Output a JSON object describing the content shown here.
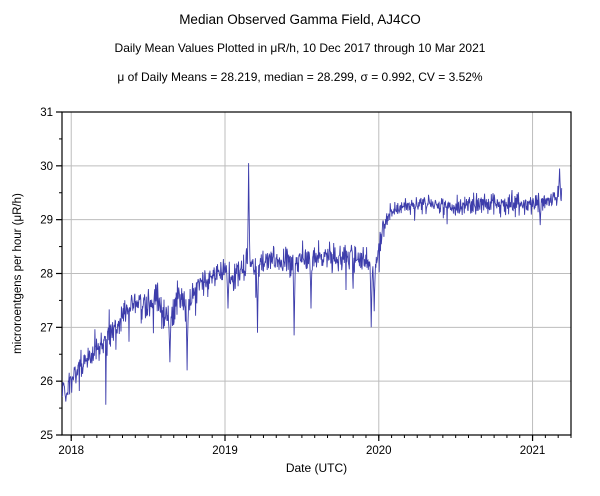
{
  "chart_data": {
    "type": "line",
    "title": "Median Observed Gamma Field, AJ4CO",
    "subtitle": "Daily Mean Values Plotted in μR/h, 10 Dec 2017 through 10 Mar 2021",
    "stats_line": "μ of Daily Means = 28.219,   median = 28.299,   σ = 0.992,   CV = 3.52%",
    "xlabel": "Date (UTC)",
    "ylabel": "microroentgens per hour (μR/h)",
    "summary": {
      "mean_of_daily_means": 28.219,
      "median": 28.299,
      "sigma": 0.992,
      "cv_percent": 3.52
    },
    "x_range": [
      2017.94,
      2021.25
    ],
    "x_data_start": 2017.94,
    "x_data_end": 2021.19,
    "ylim": [
      25,
      31
    ],
    "x_ticks": [
      2018,
      2019,
      2020,
      2021
    ],
    "y_ticks": [
      25,
      26,
      27,
      28,
      29,
      30,
      31
    ],
    "grid": true,
    "grid_color": "#bdbdbd",
    "series_color": "#3d3dab",
    "axis_color": "#000000",
    "points_per_year": 365,
    "noise_periods": [
      {
        "until": 2019.0,
        "sd": 0.14,
        "dip_prob": 0.035,
        "dip_max": 0.8
      },
      {
        "until": 2020.0,
        "sd": 0.12,
        "dip_prob": 0.03,
        "dip_max": 0.7
      },
      {
        "until": 2022.0,
        "sd": 0.09,
        "dip_prob": 0.012,
        "dip_max": 0.4
      }
    ],
    "trend_anchors": [
      [
        2017.94,
        26.0
      ],
      [
        2017.97,
        25.78
      ],
      [
        2018.0,
        26.05
      ],
      [
        2018.06,
        26.3
      ],
      [
        2018.12,
        26.45
      ],
      [
        2018.2,
        26.7
      ],
      [
        2018.3,
        27.1
      ],
      [
        2018.38,
        27.35
      ],
      [
        2018.45,
        27.45
      ],
      [
        2018.5,
        27.35
      ],
      [
        2018.55,
        27.6
      ],
      [
        2018.6,
        27.3
      ],
      [
        2018.65,
        27.15
      ],
      [
        2018.7,
        27.6
      ],
      [
        2018.75,
        27.35
      ],
      [
        2018.8,
        27.75
      ],
      [
        2018.85,
        27.95
      ],
      [
        2018.95,
        28.0
      ],
      [
        2019.0,
        28.05
      ],
      [
        2019.05,
        27.85
      ],
      [
        2019.1,
        28.1
      ],
      [
        2019.15,
        28.2
      ],
      [
        2019.2,
        28.15
      ],
      [
        2019.3,
        28.25
      ],
      [
        2019.4,
        28.2
      ],
      [
        2019.5,
        28.25
      ],
      [
        2019.6,
        28.3
      ],
      [
        2019.7,
        28.25
      ],
      [
        2019.8,
        28.3
      ],
      [
        2019.9,
        28.3
      ],
      [
        2019.97,
        28.1
      ],
      [
        2020.0,
        28.45
      ],
      [
        2020.04,
        28.95
      ],
      [
        2020.08,
        29.15
      ],
      [
        2020.15,
        29.25
      ],
      [
        2020.3,
        29.3
      ],
      [
        2020.5,
        29.25
      ],
      [
        2020.7,
        29.3
      ],
      [
        2020.9,
        29.3
      ],
      [
        2021.0,
        29.3
      ],
      [
        2021.1,
        29.35
      ],
      [
        2021.19,
        29.45
      ]
    ],
    "events": [
      [
        2017.965,
        25.62
      ],
      [
        2018.64,
        26.35
      ],
      [
        2018.755,
        26.2
      ],
      [
        2019.02,
        27.35
      ],
      [
        2019.155,
        30.05
      ],
      [
        2019.21,
        26.9
      ],
      [
        2019.45,
        26.85
      ],
      [
        2019.56,
        27.35
      ],
      [
        2019.95,
        27.0
      ],
      [
        2019.97,
        27.3
      ],
      [
        2021.05,
        28.9
      ],
      [
        2021.175,
        29.95
      ]
    ]
  }
}
